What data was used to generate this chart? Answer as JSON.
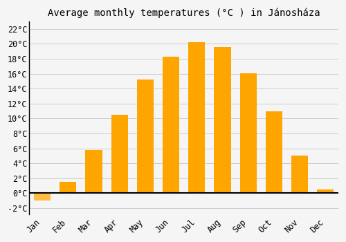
{
  "title": "Average monthly temperatures (°C ) in Jánosháza",
  "months": [
    "Jan",
    "Feb",
    "Mar",
    "Apr",
    "May",
    "Jun",
    "Jul",
    "Aug",
    "Sep",
    "Oct",
    "Nov",
    "Dec"
  ],
  "values": [
    -1.0,
    1.5,
    5.8,
    10.5,
    15.2,
    18.3,
    20.2,
    19.6,
    16.1,
    11.0,
    5.0,
    0.5
  ],
  "bar_color_pos": "#FFA500",
  "bar_color_neg": "#FFBB44",
  "background_color": "#F5F5F5",
  "grid_color": "#CCCCCC",
  "ylim": [
    -2.8,
    23
  ],
  "yticks": [
    0,
    2,
    4,
    6,
    8,
    10,
    12,
    14,
    16,
    18,
    20,
    22
  ],
  "ymin_label": "-2",
  "title_fontsize": 10,
  "tick_fontsize": 8.5,
  "bar_width": 0.65
}
